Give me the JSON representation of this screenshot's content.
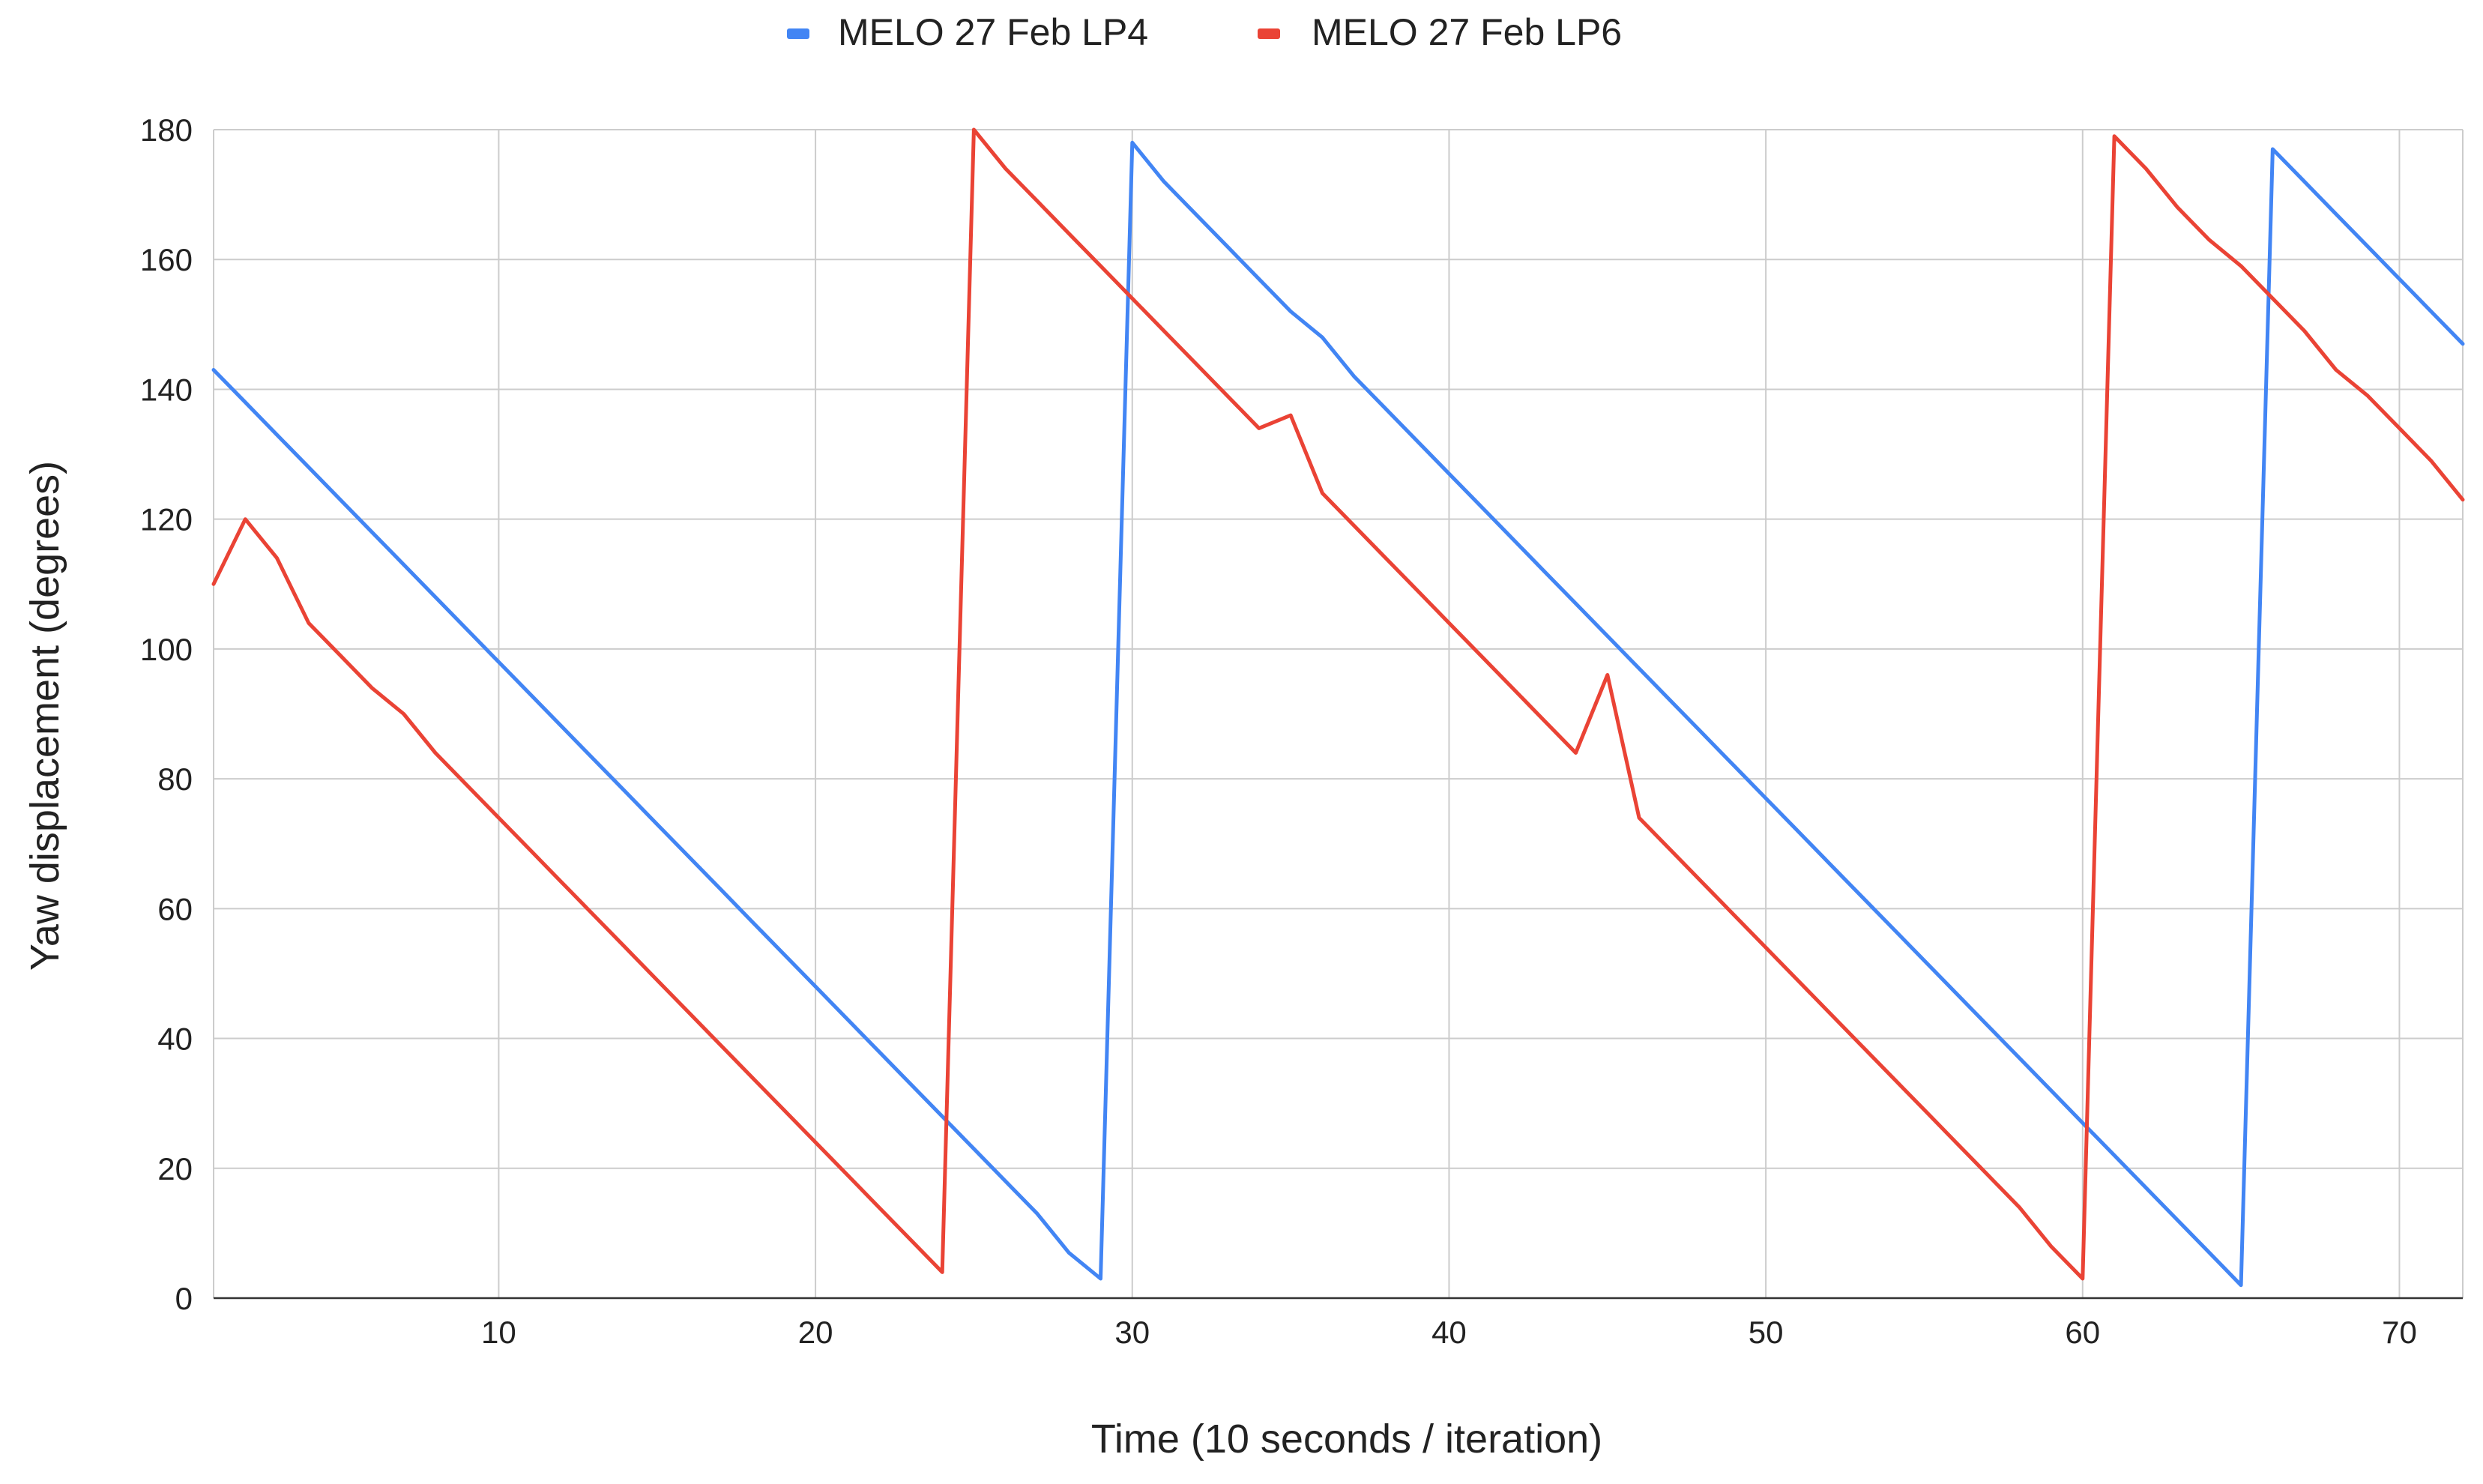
{
  "chart_data": {
    "type": "line",
    "title": "",
    "xlabel": "Time (10 seconds / iteration)",
    "ylabel": "Yaw displacement (degrees)",
    "xlim": [
      1,
      72
    ],
    "ylim": [
      0,
      180
    ],
    "x_ticks": [
      10,
      20,
      30,
      40,
      50,
      60,
      70
    ],
    "y_ticks": [
      0,
      20,
      40,
      60,
      80,
      100,
      120,
      140,
      160,
      180
    ],
    "x_grid_extra": [
      1,
      72
    ],
    "grid": true,
    "legend_position": "top-center",
    "series": [
      {
        "name": "MELO 27 Feb LP4",
        "color": "#4285F4",
        "points": [
          [
            1,
            143
          ],
          [
            2,
            138
          ],
          [
            3,
            133
          ],
          [
            4,
            128
          ],
          [
            5,
            123
          ],
          [
            6,
            118
          ],
          [
            7,
            113
          ],
          [
            8,
            108
          ],
          [
            9,
            103
          ],
          [
            10,
            98
          ],
          [
            11,
            93
          ],
          [
            12,
            88
          ],
          [
            13,
            83
          ],
          [
            14,
            78
          ],
          [
            15,
            73
          ],
          [
            16,
            68
          ],
          [
            17,
            63
          ],
          [
            18,
            58
          ],
          [
            19,
            53
          ],
          [
            20,
            48
          ],
          [
            21,
            43
          ],
          [
            22,
            38
          ],
          [
            23,
            33
          ],
          [
            24,
            28
          ],
          [
            25,
            23
          ],
          [
            26,
            18
          ],
          [
            27,
            13
          ],
          [
            28,
            7
          ],
          [
            29,
            3
          ],
          [
            30,
            178
          ],
          [
            31,
            172
          ],
          [
            32,
            167
          ],
          [
            33,
            162
          ],
          [
            34,
            157
          ],
          [
            35,
            152
          ],
          [
            36,
            148
          ],
          [
            37,
            142
          ],
          [
            38,
            137
          ],
          [
            39,
            132
          ],
          [
            40,
            127
          ],
          [
            41,
            122
          ],
          [
            42,
            117
          ],
          [
            43,
            112
          ],
          [
            44,
            107
          ],
          [
            45,
            102
          ],
          [
            46,
            97
          ],
          [
            47,
            92
          ],
          [
            48,
            87
          ],
          [
            49,
            82
          ],
          [
            50,
            77
          ],
          [
            51,
            72
          ],
          [
            52,
            67
          ],
          [
            53,
            62
          ],
          [
            54,
            57
          ],
          [
            55,
            52
          ],
          [
            56,
            47
          ],
          [
            57,
            42
          ],
          [
            58,
            37
          ],
          [
            59,
            32
          ],
          [
            60,
            27
          ],
          [
            61,
            22
          ],
          [
            62,
            17
          ],
          [
            63,
            12
          ],
          [
            64,
            7
          ],
          [
            65,
            2
          ],
          [
            66,
            177
          ],
          [
            67,
            172
          ],
          [
            68,
            167
          ],
          [
            69,
            162
          ],
          [
            70,
            157
          ],
          [
            71,
            152
          ],
          [
            72,
            147
          ]
        ]
      },
      {
        "name": "MELO 27 Feb LP6",
        "color": "#EA4335",
        "points": [
          [
            1,
            110
          ],
          [
            2,
            120
          ],
          [
            3,
            114
          ],
          [
            4,
            104
          ],
          [
            5,
            99
          ],
          [
            6,
            94
          ],
          [
            7,
            90
          ],
          [
            8,
            84
          ],
          [
            9,
            79
          ],
          [
            10,
            74
          ],
          [
            11,
            69
          ],
          [
            12,
            64
          ],
          [
            13,
            59
          ],
          [
            14,
            54
          ],
          [
            15,
            49
          ],
          [
            16,
            44
          ],
          [
            17,
            39
          ],
          [
            18,
            34
          ],
          [
            19,
            29
          ],
          [
            20,
            24
          ],
          [
            21,
            19
          ],
          [
            22,
            14
          ],
          [
            23,
            9
          ],
          [
            24,
            4
          ],
          [
            25,
            180
          ],
          [
            26,
            174
          ],
          [
            27,
            169
          ],
          [
            28,
            164
          ],
          [
            29,
            159
          ],
          [
            30,
            154
          ],
          [
            31,
            149
          ],
          [
            32,
            144
          ],
          [
            33,
            139
          ],
          [
            34,
            134
          ],
          [
            35,
            136
          ],
          [
            36,
            124
          ],
          [
            37,
            119
          ],
          [
            38,
            114
          ],
          [
            39,
            109
          ],
          [
            40,
            104
          ],
          [
            41,
            99
          ],
          [
            42,
            94
          ],
          [
            43,
            89
          ],
          [
            44,
            84
          ],
          [
            45,
            96
          ],
          [
            46,
            74
          ],
          [
            47,
            69
          ],
          [
            48,
            64
          ],
          [
            49,
            59
          ],
          [
            50,
            54
          ],
          [
            51,
            49
          ],
          [
            52,
            44
          ],
          [
            53,
            39
          ],
          [
            54,
            34
          ],
          [
            55,
            29
          ],
          [
            56,
            24
          ],
          [
            57,
            19
          ],
          [
            58,
            14
          ],
          [
            59,
            8
          ],
          [
            60,
            3
          ],
          [
            61,
            179
          ],
          [
            62,
            174
          ],
          [
            63,
            168
          ],
          [
            64,
            163
          ],
          [
            65,
            159
          ],
          [
            66,
            154
          ],
          [
            67,
            149
          ],
          [
            68,
            143
          ],
          [
            69,
            139
          ],
          [
            70,
            134
          ],
          [
            71,
            129
          ],
          [
            72,
            123
          ]
        ]
      }
    ]
  }
}
